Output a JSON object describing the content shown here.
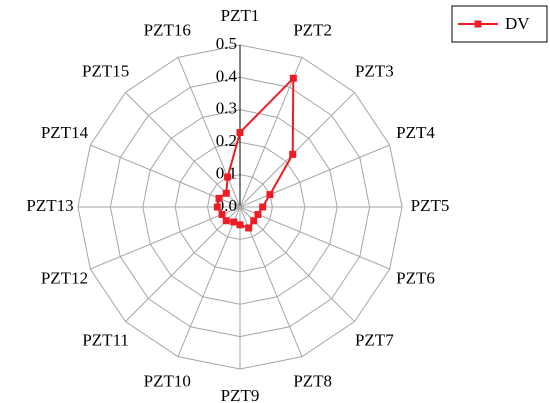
{
  "chart_data": {
    "type": "radar",
    "categories": [
      "PZT1",
      "PZT2",
      "PZT3",
      "PZT4",
      "PZT5",
      "PZT6",
      "PZT7",
      "PZT8",
      "PZT9",
      "PZT10",
      "PZT11",
      "PZT12",
      "PZT13",
      "PZT14",
      "PZT15",
      "PZT16"
    ],
    "series": [
      {
        "name": "DV",
        "color": "#ee1c25",
        "values": [
          0.23,
          0.43,
          0.23,
          0.1,
          0.07,
          0.06,
          0.06,
          0.07,
          0.055,
          0.05,
          0.06,
          0.06,
          0.07,
          0.07,
          0.06,
          0.1
        ]
      }
    ],
    "ylim": [
      0,
      0.5
    ],
    "yticks": [
      {
        "value": 0,
        "label": "0.0"
      },
      0.1,
      0.2,
      0.3,
      0.4,
      0.5
    ],
    "grid": true,
    "legend": "top-right"
  }
}
